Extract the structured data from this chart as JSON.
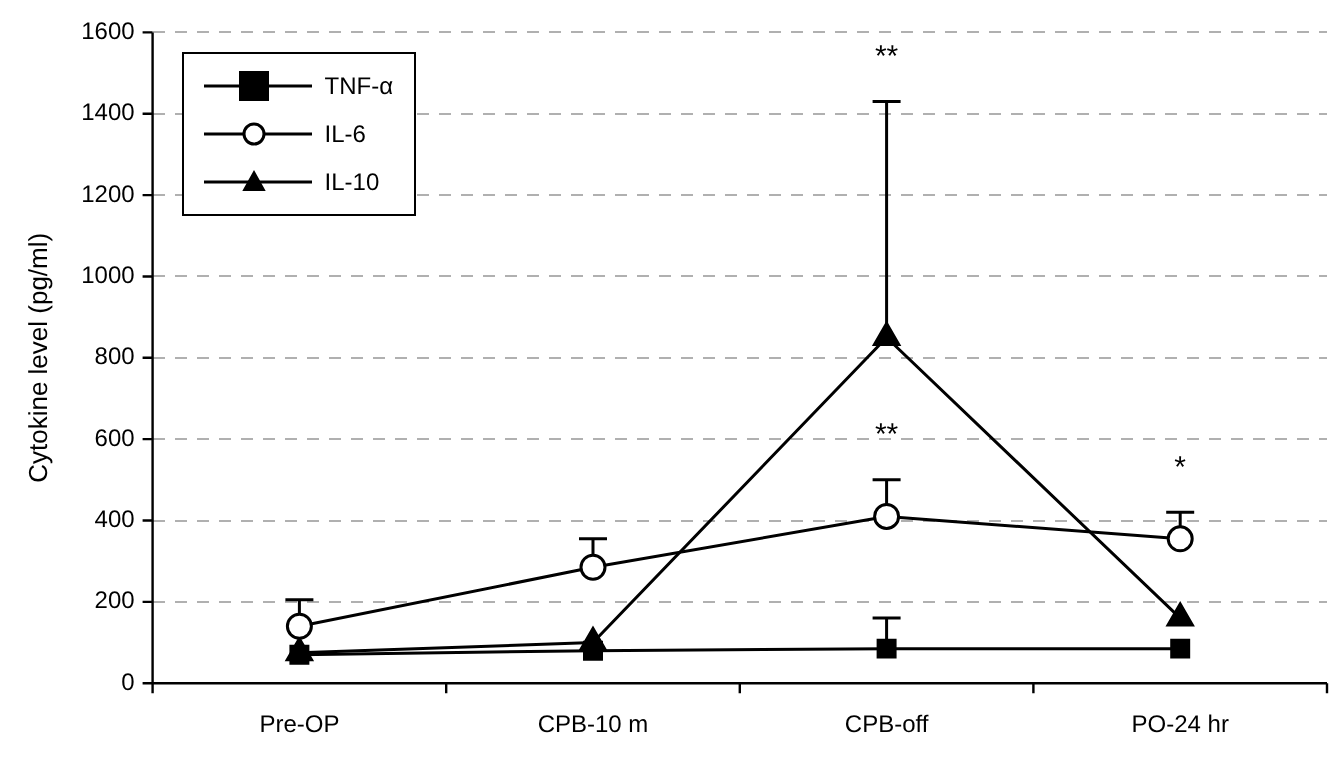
{
  "chart_data": {
    "type": "line",
    "ylabel": "Cytokine level (pg/ml)",
    "categories": [
      "Pre-OP",
      "CPB-10 m",
      "CPB-off",
      "PO-24 hr"
    ],
    "series": [
      {
        "name": "TNF-α",
        "color": "#000000",
        "marker": "square",
        "values": [
          70,
          80,
          85,
          85
        ],
        "errors": [
          null,
          null,
          [
            85,
            160
          ],
          null
        ]
      },
      {
        "name": "IL-6",
        "color": "#000000",
        "marker": "circle",
        "values": [
          140,
          285,
          410,
          355
        ],
        "errors": [
          [
            140,
            205
          ],
          [
            285,
            355
          ],
          [
            410,
            500
          ],
          [
            355,
            420
          ]
        ]
      },
      {
        "name": "IL-10",
        "color": "#000000",
        "marker": "triangle",
        "values": [
          75,
          100,
          850,
          160
        ],
        "errors": [
          null,
          null,
          [
            850,
            1430
          ],
          null
        ]
      }
    ],
    "ylim": [
      0,
      1600
    ],
    "yticks": [
      0,
      200,
      400,
      600,
      800,
      1000,
      1200,
      1400,
      1600
    ],
    "grid": "y",
    "legend": "top left",
    "annotations": [
      {
        "text": "**",
        "x": "CPB-off",
        "y": 1430
      },
      {
        "text": "**",
        "x": "CPB-off",
        "y": 500
      },
      {
        "text": "*",
        "x": "PO-24 hr",
        "y": 420
      }
    ]
  }
}
